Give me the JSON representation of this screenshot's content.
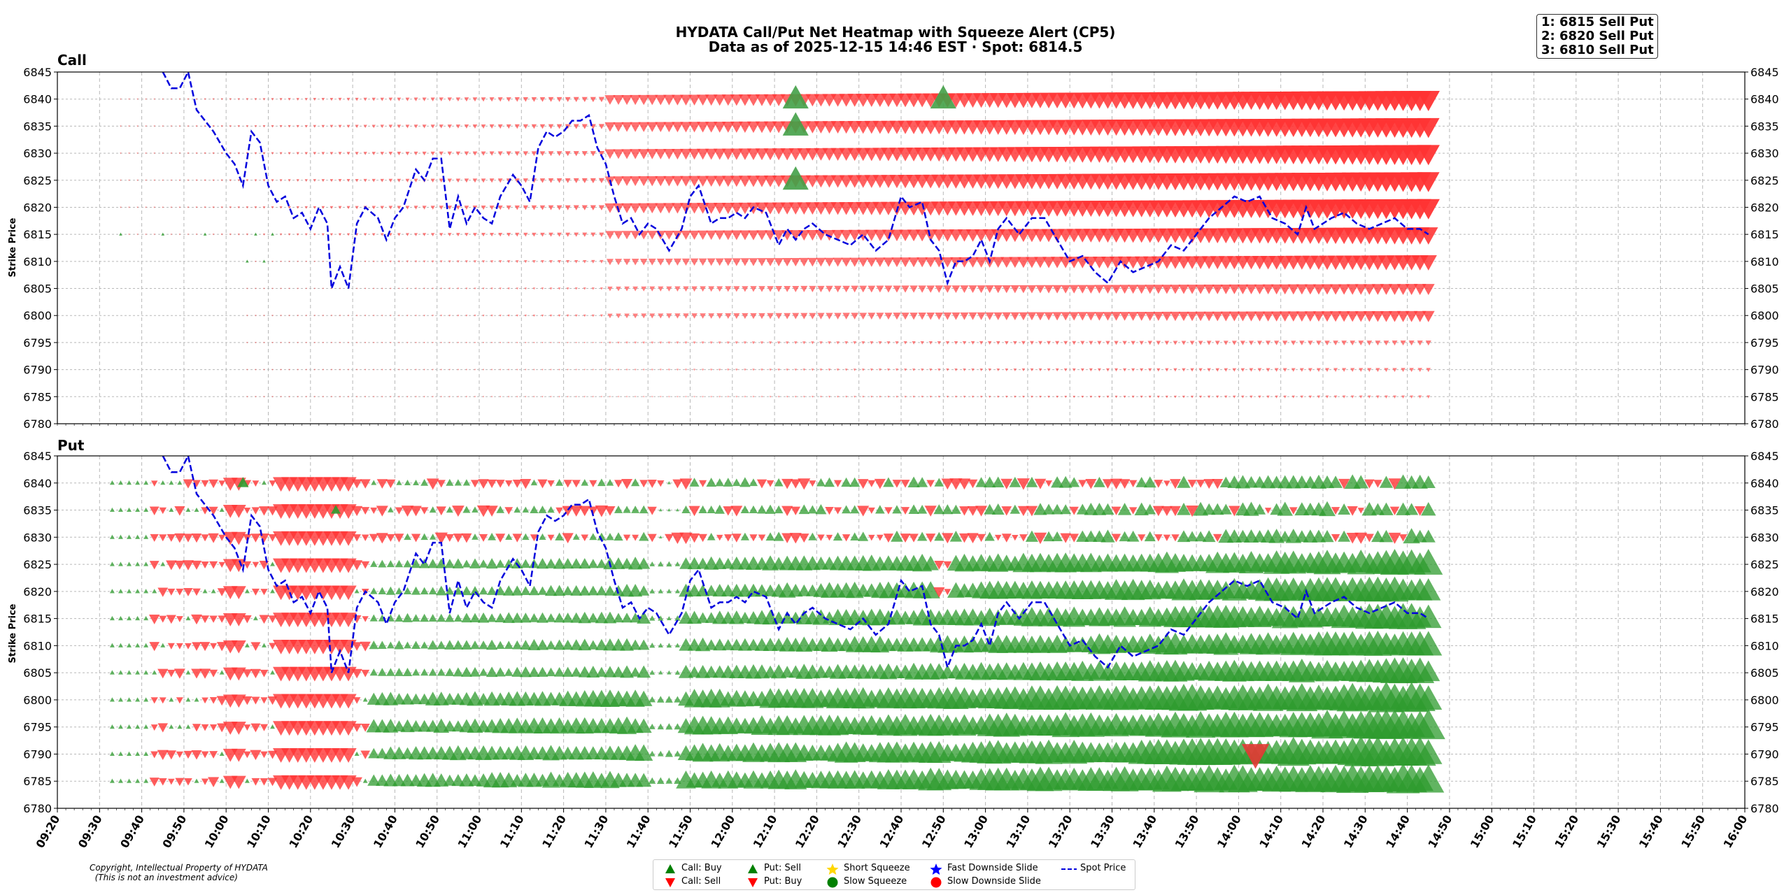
{
  "chart_data": {
    "type": "scatter",
    "title": "HYDATA Call/Put Net Heatmap with Squeeze Alert (CP5)",
    "subtitle": "Data as of 2025-12-15 14:46 EST · Spot: 6814.5",
    "ylabel": "Strike Price",
    "xlim": [
      "09:20",
      "16:00"
    ],
    "ylim": [
      6780,
      6845
    ],
    "grid": true,
    "yticks": [
      "6845",
      "6840",
      "6835",
      "6830",
      "6825",
      "6820",
      "6815",
      "6810",
      "6805",
      "6800",
      "6795",
      "6790",
      "6785",
      "6780"
    ],
    "xticks": [
      "09:20",
      "09:30",
      "09:40",
      "09:50",
      "10:00",
      "10:10",
      "10:20",
      "10:30",
      "10:40",
      "10:50",
      "11:00",
      "11:10",
      "11:20",
      "11:30",
      "11:40",
      "11:50",
      "12:00",
      "12:10",
      "12:20",
      "12:30",
      "12:40",
      "12:50",
      "13:00",
      "13:10",
      "13:20",
      "13:30",
      "13:40",
      "13:50",
      "14:00",
      "14:10",
      "14:20",
      "14:30",
      "14:40",
      "14:50",
      "15:00",
      "15:10",
      "15:20",
      "15:30",
      "15:40",
      "15:50",
      "16:00"
    ],
    "panels": [
      {
        "name": "Call"
      },
      {
        "name": "Put"
      }
    ],
    "call_strikes": [
      6840,
      6835,
      6830,
      6825,
      6820,
      6815,
      6810,
      6805,
      6800,
      6795,
      6790,
      6785
    ],
    "call_intensity": [
      1.0,
      0.98,
      1.0,
      0.98,
      1.0,
      0.85,
      0.75,
      0.55,
      0.55,
      0.25,
      0.2,
      0.15
    ],
    "call_squeeze_markers": [
      {
        "time": "12:15",
        "strike": 6840
      },
      {
        "time": "12:15",
        "strike": 6835
      },
      {
        "time": "12:15",
        "strike": 6825
      },
      {
        "time": "12:50",
        "strike": 6840
      }
    ],
    "put_strikes": [
      6840,
      6835,
      6830,
      6825,
      6820,
      6815,
      6810,
      6805,
      6800,
      6795,
      6790,
      6785
    ],
    "put_big_red_marker": {
      "time": "14:04",
      "strike": 6790
    },
    "spot_price": {
      "times": [
        "09:45",
        "09:47",
        "09:49",
        "09:51",
        "09:53",
        "09:55",
        "09:57",
        "10:00",
        "10:02",
        "10:04",
        "10:06",
        "10:08",
        "10:10",
        "10:12",
        "10:14",
        "10:16",
        "10:18",
        "10:20",
        "10:22",
        "10:24",
        "10:25",
        "10:27",
        "10:29",
        "10:31",
        "10:33",
        "10:36",
        "10:38",
        "10:40",
        "10:42",
        "10:45",
        "10:47",
        "10:49",
        "10:51",
        "10:53",
        "10:55",
        "10:57",
        "10:59",
        "11:01",
        "11:03",
        "11:05",
        "11:08",
        "11:10",
        "11:12",
        "11:14",
        "11:16",
        "11:18",
        "11:20",
        "11:22",
        "11:24",
        "11:26",
        "11:28",
        "11:30",
        "11:32",
        "11:34",
        "11:36",
        "11:38",
        "11:40",
        "11:42",
        "11:45",
        "11:48",
        "11:50",
        "11:52",
        "11:55",
        "11:57",
        "11:59",
        "12:01",
        "12:03",
        "12:05",
        "12:08",
        "12:11",
        "12:13",
        "12:15",
        "12:17",
        "12:19",
        "12:22",
        "12:25",
        "12:28",
        "12:31",
        "12:34",
        "12:37",
        "12:40",
        "12:42",
        "12:45",
        "12:47",
        "12:49",
        "12:51",
        "12:53",
        "12:55",
        "12:57",
        "12:59",
        "13:01",
        "13:03",
        "13:05",
        "13:08",
        "13:11",
        "13:14",
        "13:17",
        "13:20",
        "13:23",
        "13:26",
        "13:29",
        "13:32",
        "13:35",
        "13:38",
        "13:41",
        "13:44",
        "13:47",
        "13:50",
        "13:53",
        "13:56",
        "13:59",
        "14:02",
        "14:05",
        "14:08",
        "14:11",
        "14:14",
        "14:16",
        "14:18",
        "14:20",
        "14:22",
        "14:25",
        "14:28",
        "14:31",
        "14:34",
        "14:37",
        "14:40",
        "14:43",
        "14:45"
      ],
      "values": [
        6845,
        6842,
        6842,
        6845,
        6838,
        6836,
        6834,
        6830,
        6828,
        6824,
        6834,
        6832,
        6824,
        6821,
        6822,
        6818,
        6819,
        6816,
        6820,
        6817,
        6805,
        6809,
        6805,
        6817,
        6820,
        6818,
        6814,
        6818,
        6820,
        6827,
        6825,
        6829,
        6829,
        6816,
        6822,
        6817,
        6820,
        6818,
        6817,
        6822,
        6826,
        6824,
        6821,
        6831,
        6834,
        6833,
        6834,
        6836,
        6836,
        6837,
        6831,
        6828,
        6822,
        6817,
        6818,
        6815,
        6817,
        6816,
        6812,
        6816,
        6822,
        6824,
        6817,
        6818,
        6818,
        6819,
        6818,
        6820,
        6819,
        6813,
        6816,
        6814,
        6816,
        6817,
        6815,
        6814,
        6813,
        6815,
        6812,
        6814,
        6822,
        6820,
        6821,
        6814,
        6812,
        6806,
        6810,
        6810,
        6811,
        6814,
        6810,
        6816,
        6818,
        6815,
        6818,
        6818,
        6814,
        6810,
        6811,
        6808,
        6806,
        6810,
        6808,
        6809,
        6810,
        6813,
        6812,
        6815,
        6818,
        6820,
        6822,
        6821,
        6822,
        6818,
        6817,
        6815,
        6820,
        6816,
        6817,
        6818,
        6819,
        6817,
        6816,
        6817,
        6818,
        6816,
        6816,
        6815
      ]
    },
    "legend": [
      {
        "label": "Call: Buy",
        "marker": "triangle-up",
        "color": "#2e9b2e"
      },
      {
        "label": "Call: Sell",
        "marker": "triangle-down",
        "color": "#ff3333"
      },
      {
        "label": "Put: Sell",
        "marker": "triangle-up",
        "color": "#2e9b2e"
      },
      {
        "label": "Put: Buy",
        "marker": "triangle-down",
        "color": "#ff3333"
      },
      {
        "label": "Short Squeeze",
        "marker": "star",
        "color": "#ffd700"
      },
      {
        "label": "Slow Squeeze",
        "marker": "circle",
        "color": "#008000"
      },
      {
        "label": "Fast Downside Slide",
        "marker": "star",
        "color": "#0000ff"
      },
      {
        "label": "Slow Downside Slide",
        "marker": "circle",
        "color": "#ff0000"
      },
      {
        "label": "Spot Price",
        "marker": "dashed-line",
        "color": "#0000dd"
      }
    ]
  },
  "alerts": [
    "1: 6815 Sell Put",
    "2: 6820 Sell Put",
    "3: 6810 Sell Put"
  ],
  "copyright": "Copyright, Intellectual Property of HYDATA\n  (This is not an investment advice)",
  "colors": {
    "red": "#ff3333",
    "green": "#2e9b2e",
    "spot": "#0000dd",
    "grid": "#b8b8b8"
  }
}
